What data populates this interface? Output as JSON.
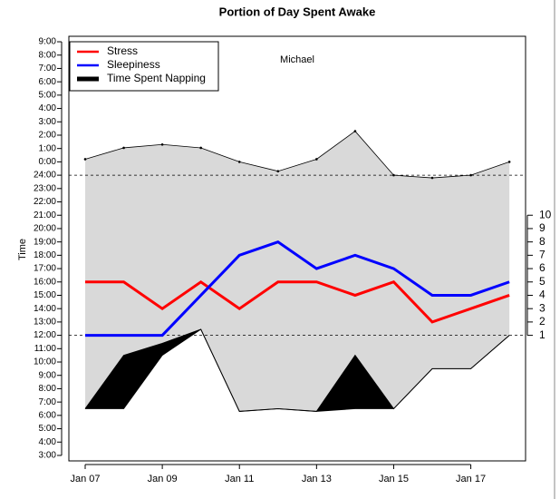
{
  "chart_data": {
    "type": "line",
    "title": "Portion of Day Spent Awake",
    "ylabel": "Time",
    "annotation": "Michael",
    "x": [
      7,
      8,
      9,
      10,
      11,
      12,
      13,
      14,
      15,
      16,
      17,
      18
    ],
    "xlim": [
      6.577,
      18.42
    ],
    "xticks": [
      {
        "value": 7,
        "label": "Jan 07"
      },
      {
        "value": 9,
        "label": "Jan 09"
      },
      {
        "value": 11,
        "label": "Jan 11"
      },
      {
        "value": 13,
        "label": "Jan 13"
      },
      {
        "value": 15,
        "label": "Jan 15"
      },
      {
        "value": 17,
        "label": "Jan 17"
      }
    ],
    "ylim": [
      2.59,
      34.41
    ],
    "yticks": [
      {
        "value": 3,
        "label": "3:00"
      },
      {
        "value": 4,
        "label": "4:00"
      },
      {
        "value": 5,
        "label": "5:00"
      },
      {
        "value": 6,
        "label": "6:00"
      },
      {
        "value": 7,
        "label": "7:00"
      },
      {
        "value": 8,
        "label": "8:00"
      },
      {
        "value": 9,
        "label": "9:00"
      },
      {
        "value": 10,
        "label": "10:00"
      },
      {
        "value": 11,
        "label": "11:00"
      },
      {
        "value": 12,
        "label": "12:00"
      },
      {
        "value": 13,
        "label": "13:00"
      },
      {
        "value": 14,
        "label": "14:00"
      },
      {
        "value": 15,
        "label": "15:00"
      },
      {
        "value": 16,
        "label": "16:00"
      },
      {
        "value": 17,
        "label": "17:00"
      },
      {
        "value": 18,
        "label": "18:00"
      },
      {
        "value": 19,
        "label": "19:00"
      },
      {
        "value": 20,
        "label": "20:00"
      },
      {
        "value": 21,
        "label": "21:00"
      },
      {
        "value": 22,
        "label": "22:00"
      },
      {
        "value": 23,
        "label": "23:00"
      },
      {
        "value": 24,
        "label": "24:00"
      },
      {
        "value": 25,
        "label": "0:00"
      },
      {
        "value": 26,
        "label": "1:00"
      },
      {
        "value": 27,
        "label": "2:00"
      },
      {
        "value": 28,
        "label": "3:00"
      },
      {
        "value": 29,
        "label": "4:00"
      },
      {
        "value": 30,
        "label": "5:00"
      },
      {
        "value": 31,
        "label": "6:00"
      },
      {
        "value": 32,
        "label": "7:00"
      },
      {
        "value": 33,
        "label": "8:00"
      },
      {
        "value": 34,
        "label": "9:00"
      }
    ],
    "y2lim": [
      -8.41,
      23.41
    ],
    "y2ticks": [
      1,
      2,
      3,
      4,
      5,
      6,
      7,
      8,
      9,
      10
    ],
    "hlines": [
      24,
      12
    ],
    "band": {
      "color": "#d9d9d9",
      "upper": [
        25.2,
        26.05,
        26.3,
        26.05,
        25.0,
        24.3,
        25.2,
        27.3,
        24.0,
        23.8,
        24.0,
        25.0
      ],
      "lower": [
        6.5,
        6.5,
        10.5,
        12.45,
        6.3,
        6.5,
        6.3,
        6.5,
        6.5,
        9.5,
        9.5,
        12.0
      ]
    },
    "series": [
      {
        "name": "Stress",
        "color": "#ff0000",
        "axis": "y2",
        "values": [
          5,
          5,
          3,
          5,
          3,
          5,
          5,
          4,
          5,
          2,
          3,
          4
        ]
      },
      {
        "name": "Sleepiness",
        "color": "#0000ff",
        "axis": "y2",
        "values": [
          1,
          1,
          1,
          4,
          7,
          8,
          6,
          7,
          6,
          4,
          4,
          5
        ]
      },
      {
        "name": "Time Spent Napping",
        "color": "#000000",
        "values": [
          6.5,
          10.5,
          11.4,
          12.45,
          6.3,
          6.5,
          6.3,
          10.5,
          6.5,
          9.5,
          9.5,
          12.0
        ]
      }
    ],
    "legend": "top-left"
  }
}
